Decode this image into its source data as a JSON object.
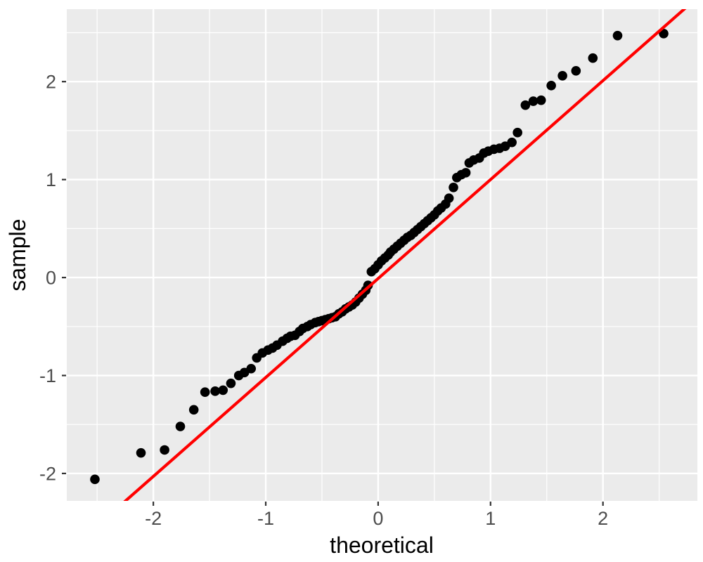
{
  "chart_data": {
    "type": "scatter",
    "title": "",
    "xlabel": "theoretical",
    "ylabel": "sample",
    "xlim": [
      -2.77,
      2.84
    ],
    "ylim": [
      -2.28,
      2.74
    ],
    "x_ticks": [
      -2,
      -1,
      0,
      1,
      2
    ],
    "y_ticks": [
      -2,
      -1,
      0,
      1,
      2
    ],
    "x_minor": [
      -2.5,
      -1.5,
      -0.5,
      0.5,
      1.5,
      2.5
    ],
    "y_minor": [
      -1.5,
      -0.5,
      0.5,
      1.5,
      2.5
    ],
    "grid": true,
    "legend": false,
    "panel_bg": "#EBEBEB",
    "grid_color": "#FFFFFF",
    "point_color": "#000000",
    "point_radius": 6.8,
    "tick_color": "#333333",
    "tick_label_color": "#4D4D4D",
    "axis_title_color": "#000000",
    "ref_line": {
      "slope": 1.01,
      "intercept": -0.01,
      "color": "#FF0000",
      "width": 4.2
    },
    "points": [
      [
        -2.52,
        -2.06
      ],
      [
        -2.11,
        -1.79
      ],
      [
        -1.9,
        -1.76
      ],
      [
        -1.76,
        -1.52
      ],
      [
        -1.64,
        -1.35
      ],
      [
        -1.54,
        -1.17
      ],
      [
        -1.45,
        -1.16
      ],
      [
        -1.38,
        -1.15
      ],
      [
        -1.31,
        -1.08
      ],
      [
        -1.24,
        -1.0
      ],
      [
        -1.19,
        -0.97
      ],
      [
        -1.13,
        -0.93
      ],
      [
        -1.08,
        -0.82
      ],
      [
        -1.03,
        -0.77
      ],
      [
        -0.98,
        -0.74
      ],
      [
        -0.94,
        -0.72
      ],
      [
        -0.9,
        -0.69
      ],
      [
        -0.85,
        -0.65
      ],
      [
        -0.81,
        -0.62
      ],
      [
        -0.78,
        -0.6
      ],
      [
        -0.74,
        -0.59
      ],
      [
        -0.7,
        -0.55
      ],
      [
        -0.67,
        -0.52
      ],
      [
        -0.63,
        -0.5
      ],
      [
        -0.6,
        -0.48
      ],
      [
        -0.56,
        -0.46
      ],
      [
        -0.53,
        -0.45
      ],
      [
        -0.5,
        -0.44
      ],
      [
        -0.47,
        -0.43
      ],
      [
        -0.44,
        -0.42
      ],
      [
        -0.41,
        -0.41
      ],
      [
        -0.38,
        -0.4
      ],
      [
        -0.35,
        -0.37
      ],
      [
        -0.32,
        -0.35
      ],
      [
        -0.29,
        -0.32
      ],
      [
        -0.26,
        -0.3
      ],
      [
        -0.23,
        -0.28
      ],
      [
        -0.2,
        -0.25
      ],
      [
        -0.17,
        -0.21
      ],
      [
        -0.14,
        -0.17
      ],
      [
        -0.11,
        -0.13
      ],
      [
        -0.09,
        -0.08
      ],
      [
        -0.06,
        0.06
      ],
      [
        -0.03,
        0.09
      ],
      [
        0.0,
        0.13
      ],
      [
        0.03,
        0.17
      ],
      [
        0.06,
        0.2
      ],
      [
        0.09,
        0.23
      ],
      [
        0.11,
        0.26
      ],
      [
        0.14,
        0.29
      ],
      [
        0.17,
        0.32
      ],
      [
        0.2,
        0.35
      ],
      [
        0.23,
        0.38
      ],
      [
        0.26,
        0.41
      ],
      [
        0.29,
        0.43
      ],
      [
        0.32,
        0.46
      ],
      [
        0.35,
        0.49
      ],
      [
        0.38,
        0.52
      ],
      [
        0.41,
        0.55
      ],
      [
        0.44,
        0.58
      ],
      [
        0.47,
        0.61
      ],
      [
        0.5,
        0.64
      ],
      [
        0.53,
        0.68
      ],
      [
        0.56,
        0.71
      ],
      [
        0.6,
        0.75
      ],
      [
        0.63,
        0.81
      ],
      [
        0.67,
        0.92
      ],
      [
        0.7,
        1.02
      ],
      [
        0.74,
        1.05
      ],
      [
        0.78,
        1.07
      ],
      [
        0.81,
        1.17
      ],
      [
        0.85,
        1.2
      ],
      [
        0.9,
        1.22
      ],
      [
        0.94,
        1.27
      ],
      [
        0.98,
        1.29
      ],
      [
        1.03,
        1.31
      ],
      [
        1.08,
        1.32
      ],
      [
        1.13,
        1.34
      ],
      [
        1.19,
        1.38
      ],
      [
        1.24,
        1.48
      ],
      [
        1.31,
        1.76
      ],
      [
        1.38,
        1.8
      ],
      [
        1.45,
        1.81
      ],
      [
        1.54,
        1.96
      ],
      [
        1.64,
        2.06
      ],
      [
        1.76,
        2.11
      ],
      [
        1.91,
        2.24
      ],
      [
        2.13,
        2.47
      ],
      [
        2.54,
        2.49
      ]
    ]
  }
}
